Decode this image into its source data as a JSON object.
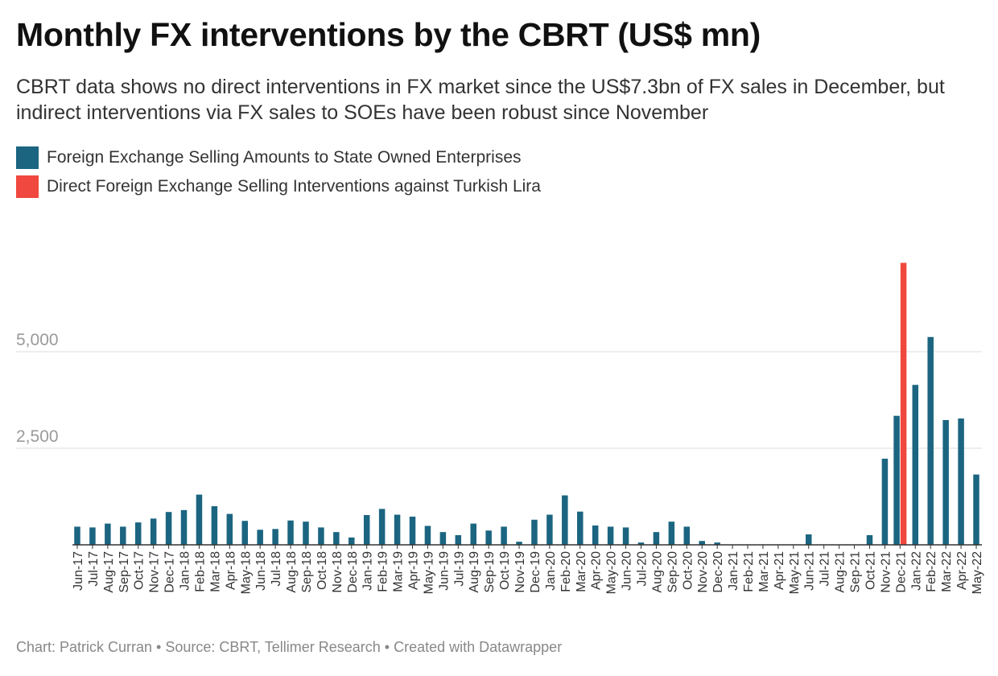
{
  "title": "Monthly FX interventions by the CBRT (US$ mn)",
  "subtitle": "CBRT data shows no direct interventions in FX market since the US$7.3bn of FX sales in December, but indirect interventions via FX sales to SOEs have been robust since November",
  "footer": "Chart: Patrick Curran • Source: CBRT, Tellimer Research • Created with Datawrapper",
  "colors": {
    "soe": "#1b6581",
    "direct": "#f0483e",
    "grid": "#e3e3e3",
    "tick": "#9a9a9a"
  },
  "chart_data": {
    "type": "bar",
    "title": "Monthly FX interventions by the CBRT (US$ mn)",
    "ylim": [
      0,
      7300
    ],
    "yticks": [
      2500,
      5000
    ],
    "ytick_labels": [
      "2,500",
      "5,000"
    ],
    "grid": true,
    "legend_position": "top-left",
    "categories": [
      "Jun-17",
      "Jul-17",
      "Aug-17",
      "Sep-17",
      "Oct-17",
      "Nov-17",
      "Dec-17",
      "Jan-18",
      "Feb-18",
      "Mar-18",
      "Apr-18",
      "May-18",
      "Jun-18",
      "Jul-18",
      "Aug-18",
      "Sep-18",
      "Oct-18",
      "Nov-18",
      "Dec-18",
      "Jan-19",
      "Feb-19",
      "Mar-19",
      "Apr-19",
      "May-19",
      "Jun-19",
      "Jul-19",
      "Aug-19",
      "Sep-19",
      "Oct-19",
      "Nov-19",
      "Dec-19",
      "Jan-20",
      "Feb-20",
      "Mar-20",
      "Apr-20",
      "May-20",
      "Jun-20",
      "Jul-20",
      "Aug-20",
      "Sep-20",
      "Oct-20",
      "Nov-20",
      "Dec-20",
      "Jan-21",
      "Feb-21",
      "Mar-21",
      "Apr-21",
      "May-21",
      "Jun-21",
      "Jul-21",
      "Aug-21",
      "Sep-21",
      "Oct-21",
      "Nov-21",
      "Dec-21",
      "Jan-22",
      "Feb-22",
      "Mar-22",
      "Apr-22",
      "May-22"
    ],
    "series": [
      {
        "name": "Foreign Exchange Selling Amounts to State Owned Enterprises",
        "color": "#1b6581",
        "values": [
          470,
          450,
          550,
          470,
          580,
          680,
          850,
          900,
          1300,
          1000,
          800,
          620,
          390,
          410,
          630,
          600,
          450,
          330,
          190,
          770,
          930,
          780,
          730,
          490,
          330,
          250,
          550,
          370,
          470,
          80,
          650,
          780,
          1280,
          860,
          500,
          470,
          450,
          60,
          330,
          600,
          470,
          100,
          60,
          0,
          0,
          0,
          0,
          0,
          270,
          0,
          0,
          0,
          250,
          2230,
          3340,
          4140,
          5380,
          3230,
          3270,
          1820
        ]
      },
      {
        "name": "Direct Foreign Exchange Selling Interventions against Turkish Lira",
        "color": "#f0483e",
        "values": [
          0,
          0,
          0,
          0,
          0,
          0,
          0,
          0,
          0,
          0,
          0,
          0,
          0,
          0,
          0,
          0,
          0,
          0,
          0,
          0,
          0,
          0,
          0,
          0,
          0,
          0,
          0,
          0,
          0,
          0,
          0,
          0,
          0,
          0,
          0,
          0,
          0,
          0,
          0,
          0,
          0,
          0,
          0,
          0,
          0,
          0,
          0,
          0,
          0,
          0,
          0,
          0,
          0,
          0,
          7300,
          0,
          0,
          0,
          0,
          0
        ]
      }
    ]
  }
}
